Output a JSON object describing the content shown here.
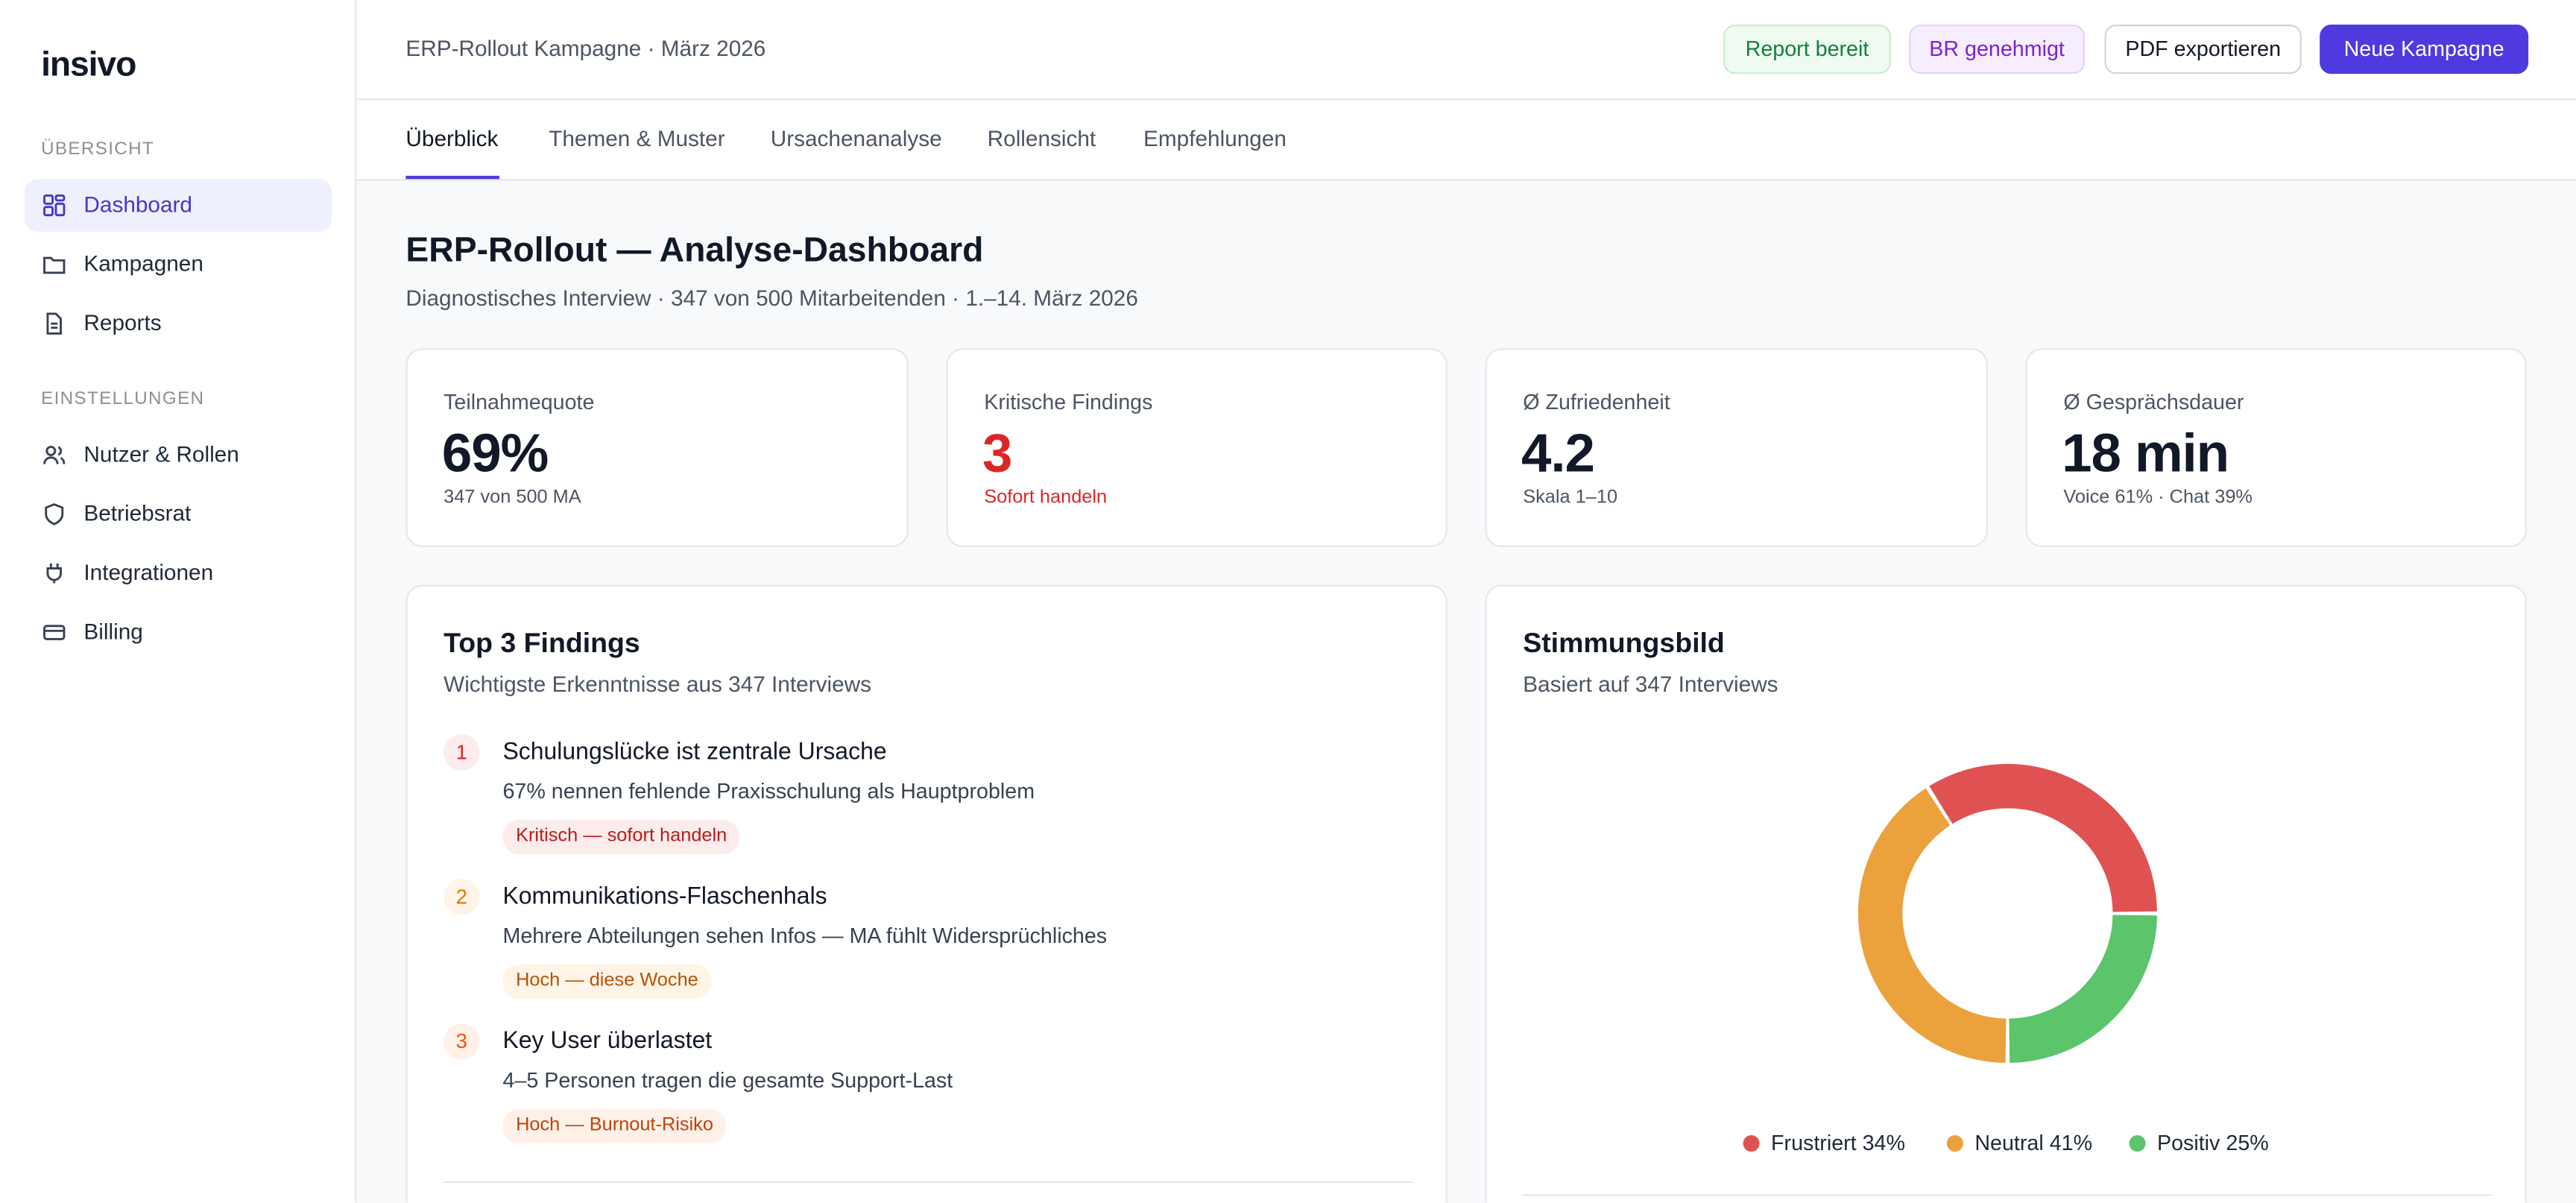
{
  "sidebar": {
    "logo": "insivo",
    "sections": [
      {
        "title": "ÜBERSICHT",
        "items": [
          "Dashboard",
          "Kampagnen",
          "Reports"
        ]
      },
      {
        "title": "EINSTELLUNGEN",
        "items": [
          "Nutzer & Rollen",
          "Betriebsrat",
          "Integrationen",
          "Billing"
        ]
      }
    ]
  },
  "header": {
    "breadcrumb": "ERP-Rollout Kampagne · März 2026",
    "badges": [
      "Report bereit",
      "BR genehmigt"
    ],
    "buttons": [
      "PDF exportieren",
      "Neue Kampagne"
    ]
  },
  "tabs": [
    "Überblick",
    "Themen & Muster",
    "Ursachenanalyse",
    "Rollensicht",
    "Empfehlungen"
  ],
  "page": {
    "title": "ERP-Rollout — Analyse-Dashboard",
    "subtitle": "Diagnostisches Interview · 347 von 500 Mitarbeitenden · 1.–14. März 2026"
  },
  "kpis": [
    {
      "label": "Teilnahmequote",
      "value": "69%",
      "note": "347 von 500 MA"
    },
    {
      "label": "Kritische Findings",
      "value": "3",
      "note": "Sofort handeln"
    },
    {
      "label": "Ø Zufriedenheit",
      "value": "4.2",
      "note": "Skala 1–10"
    },
    {
      "label": "Ø Gesprächsdauer",
      "value": "18 min",
      "note": "Voice 61% · Chat 39%"
    }
  ],
  "findings": {
    "title": "Top 3 Findings",
    "subtitle": "Wichtigste Erkenntnisse aus 347 Interviews",
    "items": [
      {
        "rank": "1",
        "title": "Schulungslücke ist zentrale Ursache",
        "description": "67% nennen fehlende Praxisschulung als Hauptproblem",
        "tag": "Kritisch — sofort handeln"
      },
      {
        "rank": "2",
        "title": "Kommunikations-Flaschenhals",
        "description": "Mehrere Abteilungen sehen Infos — MA fühlt Widersprüchliches",
        "tag": "Hoch — diese Woche"
      },
      {
        "rank": "3",
        "title": "Key User überlastet",
        "description": "4–5 Personen tragen die gesamte Support-Last",
        "tag": "Hoch — Burnout-Risiko"
      }
    ]
  },
  "chart_data": {
    "type": "pie",
    "title": "Stimmungsbild",
    "subtitle": "Basiert auf 347 Interviews",
    "categories": [
      "Frustriert",
      "Neutral",
      "Positiv"
    ],
    "values": [
      34,
      41,
      25
    ],
    "value_labels": [
      "34%",
      "41%",
      "25%"
    ],
    "colors": [
      "#e05252",
      "#eba23c",
      "#5cc46a"
    ]
  }
}
